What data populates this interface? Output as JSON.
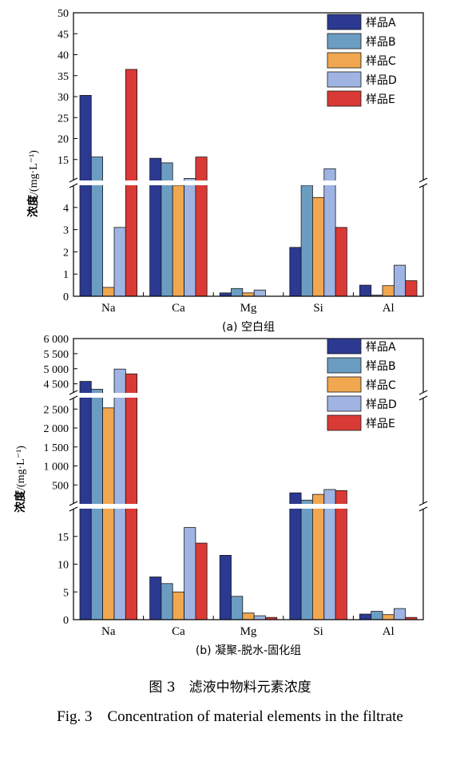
{
  "caption": {
    "cn": "图 3　滤液中物料元素浓度",
    "en": "Fig. 3　Concentration of material elements in the filtrate"
  },
  "series_colors": [
    "#2b3990",
    "#6b9dc2",
    "#f0a74f",
    "#9fb4e3",
    "#d93a35"
  ],
  "chart_data": [
    {
      "type": "bar",
      "subtitle": "(a) 空白组",
      "ylabel": "浓度",
      "yunit": "/(mg·L⁻¹)",
      "categories": [
        "Na",
        "Ca",
        "Mg",
        "Si",
        "Al"
      ],
      "broken_axis": true,
      "lower_range": [
        0,
        5
      ],
      "lower_ticks": [
        "0",
        "1",
        "2",
        "3",
        "4"
      ],
      "upper_range": [
        10,
        50
      ],
      "upper_ticks": [
        "15",
        "20",
        "25",
        "30",
        "35",
        "40",
        "45",
        "50"
      ],
      "legend_position": "top-right",
      "series": [
        {
          "name": "样品A",
          "values": [
            30.3,
            15.3,
            0.15,
            2.2,
            0.5
          ]
        },
        {
          "name": "样品B",
          "values": [
            15.6,
            14.2,
            0.35,
            5.0,
            0.05
          ]
        },
        {
          "name": "样品C",
          "values": [
            0.4,
            5.0,
            0.15,
            4.45,
            0.48
          ]
        },
        {
          "name": "样品D",
          "values": [
            3.1,
            10.5,
            0.28,
            12.8,
            1.4
          ]
        },
        {
          "name": "样品E",
          "values": [
            36.5,
            15.6,
            0.0,
            3.1,
            0.7
          ]
        }
      ]
    },
    {
      "type": "bar",
      "subtitle": "(b) 凝聚-脱水-固化组",
      "ylabel": "浓度",
      "yunit": "/(mg·L⁻¹)",
      "categories": [
        "Na",
        "Ca",
        "Mg",
        "Si",
        "Al"
      ],
      "broken_axis": true,
      "lower_range": [
        0,
        20
      ],
      "lower_ticks": [
        "0",
        "5",
        "10",
        "15"
      ],
      "middle_range": [
        0,
        2800
      ],
      "middle_ticks": [
        "500",
        "1 000",
        "1 500",
        "2 000",
        "2 500"
      ],
      "upper_range": [
        4200,
        6000
      ],
      "upper_ticks": [
        "4 500",
        "5 000",
        "5 500",
        "6 000"
      ],
      "legend_position": "top-right",
      "series": [
        {
          "name": "样品A",
          "values": [
            4580,
            7.7,
            11.6,
            290,
            1.0
          ]
        },
        {
          "name": "样品B",
          "values": [
            4320,
            6.5,
            4.2,
            100,
            1.5
          ]
        },
        {
          "name": "样品C",
          "values": [
            2530,
            5.0,
            1.2,
            250,
            0.9
          ]
        },
        {
          "name": "样品D",
          "values": [
            4990,
            16.6,
            0.7,
            380,
            2.0
          ]
        },
        {
          "name": "样品E",
          "values": [
            4830,
            13.8,
            0.4,
            350,
            0.4
          ]
        }
      ]
    }
  ]
}
